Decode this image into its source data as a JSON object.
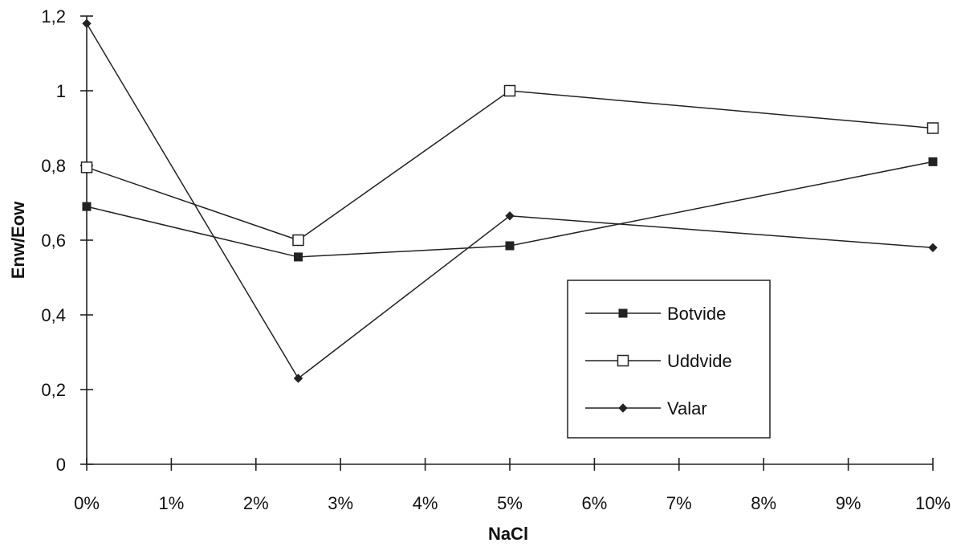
{
  "chart_data": {
    "type": "line",
    "xlabel": "NaCl",
    "ylabel": "Enw/Eow",
    "xlim": [
      0,
      10
    ],
    "ylim": [
      0,
      1.2
    ],
    "x_ticks": [
      "0%",
      "1%",
      "2%",
      "3%",
      "4%",
      "5%",
      "6%",
      "7%",
      "8%",
      "9%",
      "10%"
    ],
    "y_ticks": [
      "0",
      "0,2",
      "0,4",
      "0,6",
      "0,8",
      "1",
      "1,2"
    ],
    "x": [
      0,
      2.5,
      5,
      10
    ],
    "series": [
      {
        "name": "Botvide",
        "marker": "square-filled",
        "values": [
          0.69,
          0.555,
          0.585,
          0.81
        ]
      },
      {
        "name": "Uddvide",
        "marker": "square-open",
        "values": [
          0.795,
          0.6,
          1.0,
          0.9
        ]
      },
      {
        "name": "Valar",
        "marker": "diamond",
        "values": [
          1.18,
          0.23,
          0.665,
          0.58
        ]
      }
    ],
    "legend_position": "bottom-right",
    "grid": false
  }
}
